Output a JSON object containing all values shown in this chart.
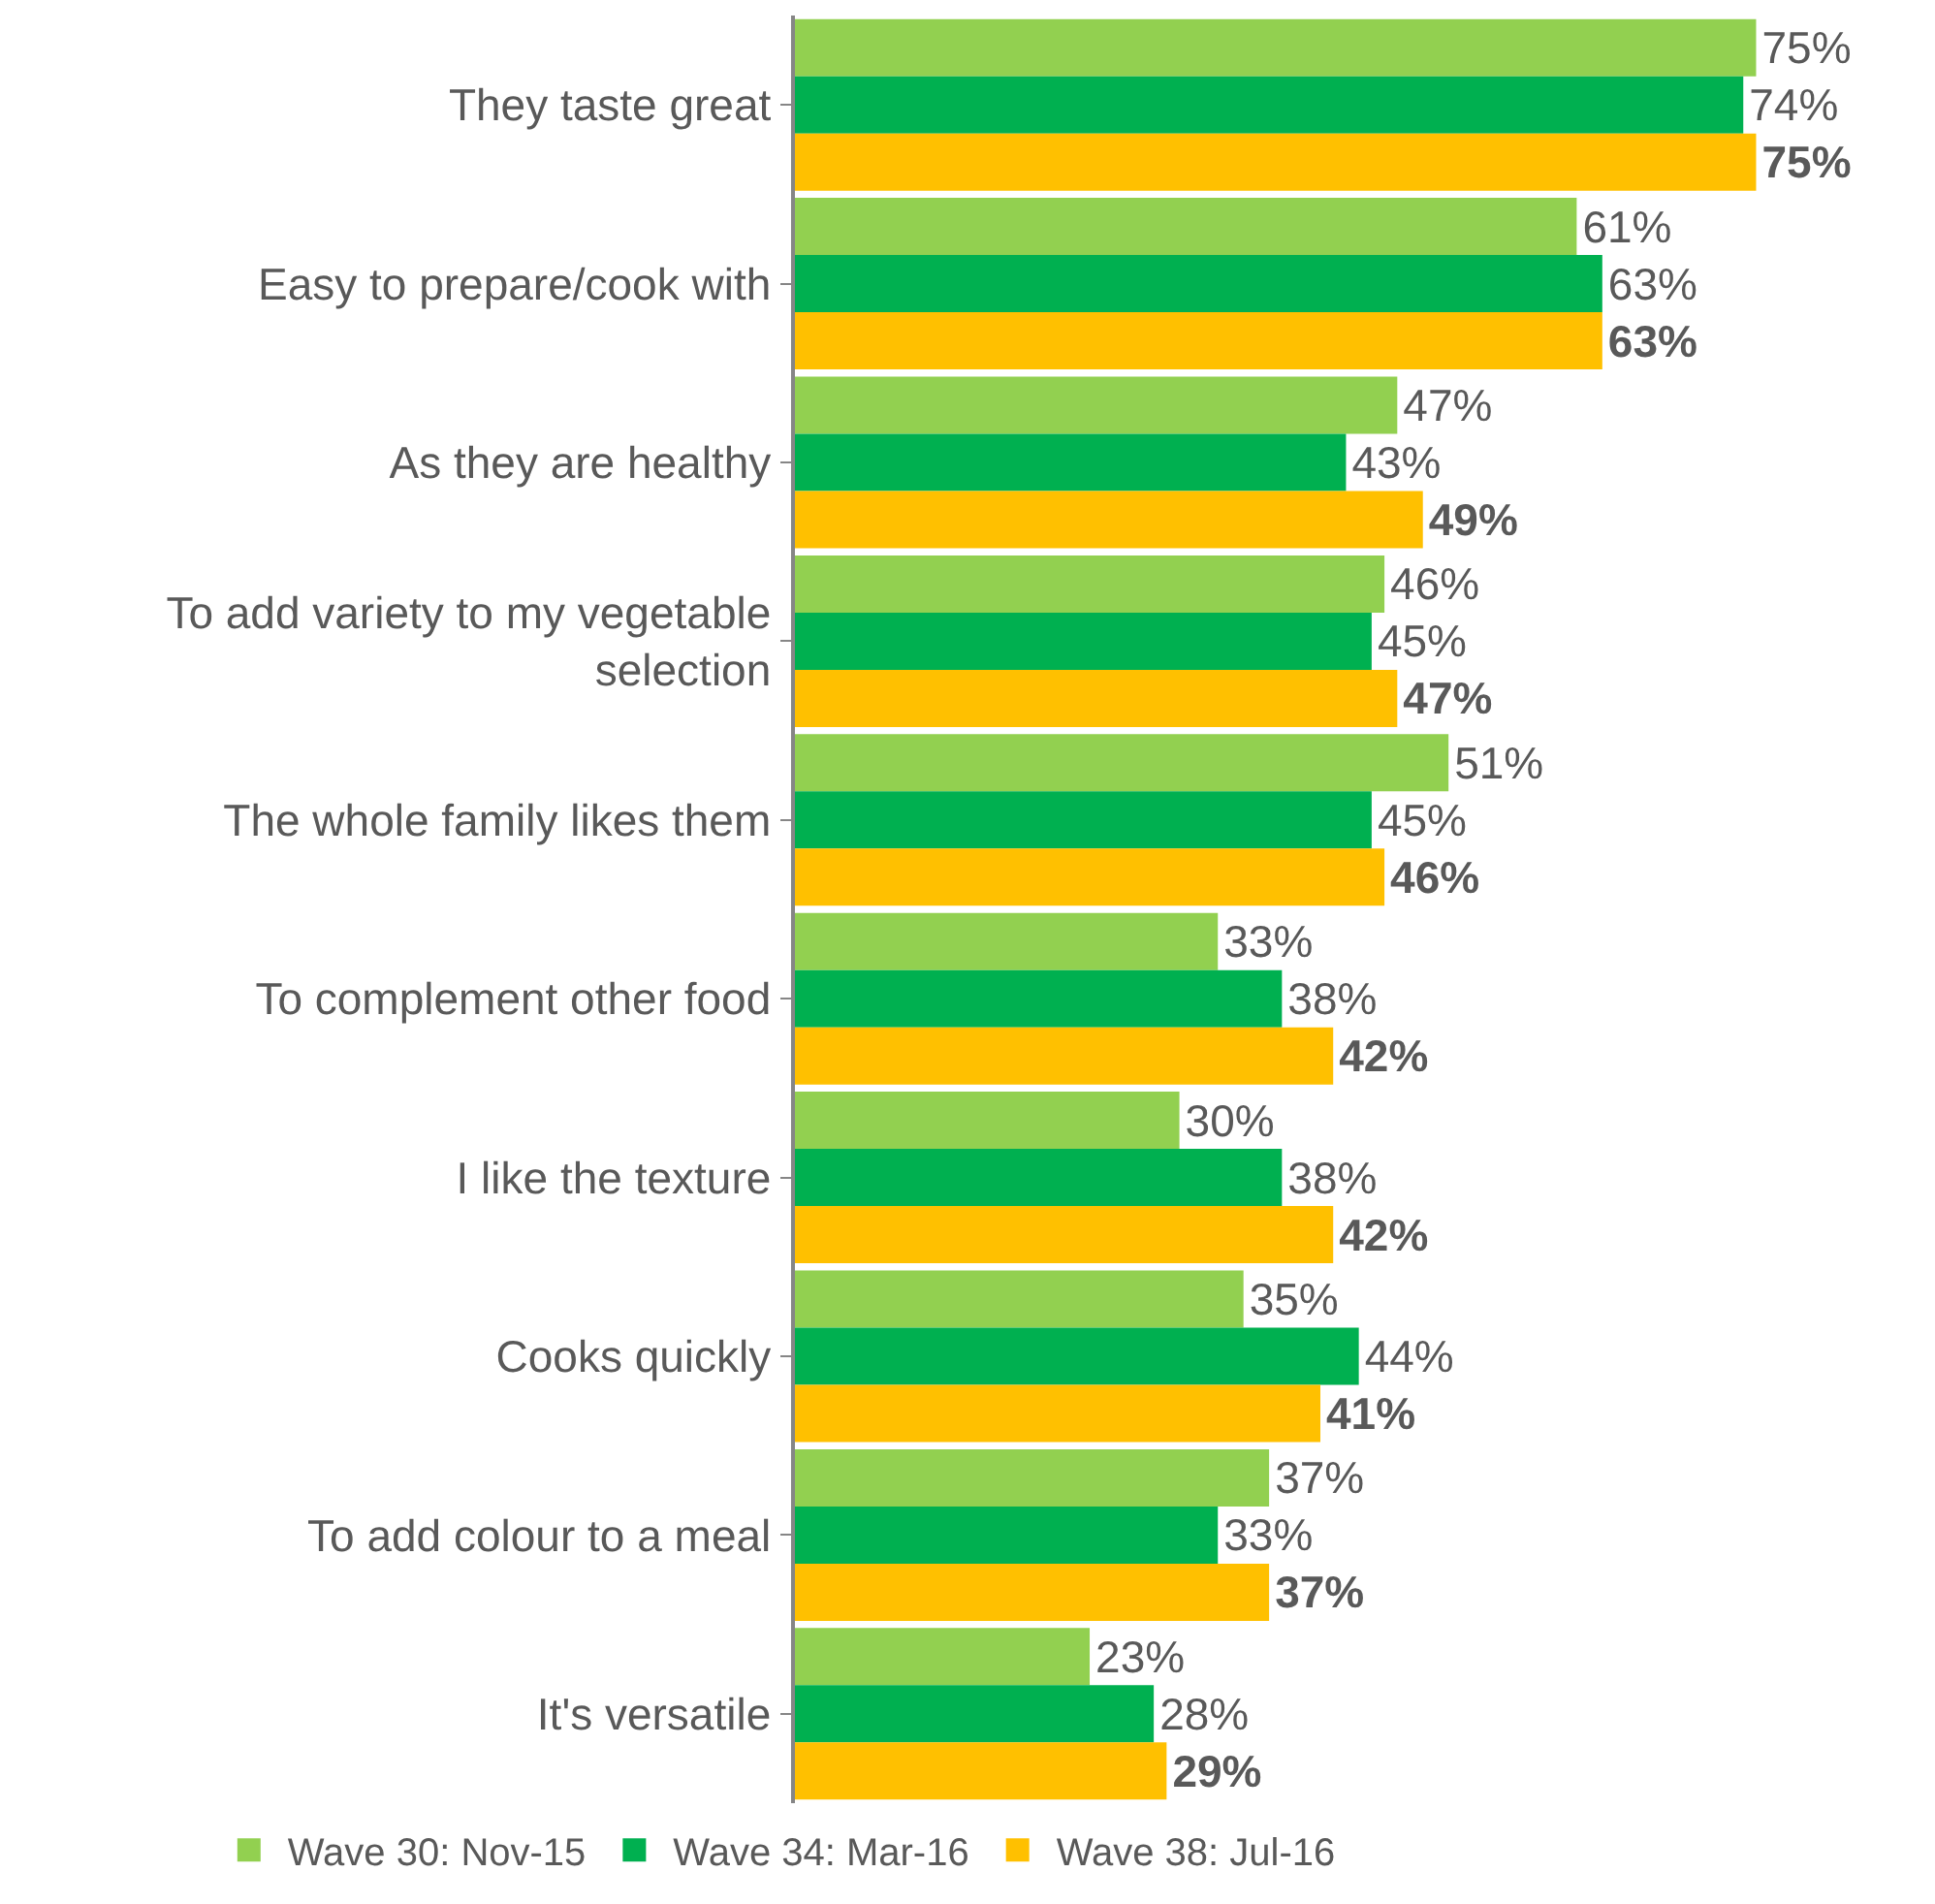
{
  "chart_data": {
    "type": "bar",
    "orientation": "horizontal",
    "tick_labels": "y",
    "legend": "bottom",
    "categories": [
      "They taste great",
      "Easy to prepare/cook with",
      "As they are healthy",
      "To add variety to my vegetable selection",
      "The whole family likes them",
      "To complement other food",
      "I like the texture",
      "Cooks quickly",
      "To add colour to a meal",
      "It's versatile"
    ],
    "series": [
      {
        "name": "Wave 30: Nov-15",
        "color": "#92d050",
        "values": [
          75,
          61,
          47,
          46,
          51,
          33,
          30,
          35,
          37,
          23
        ],
        "value_labels": [
          "75%",
          "61%",
          "47%",
          "46%",
          "51%",
          "33%",
          "30%",
          "35%",
          "37%",
          "23%"
        ]
      },
      {
        "name": "Wave 34: Mar-16",
        "color": "#00b050",
        "values": [
          74,
          63,
          43,
          45,
          45,
          38,
          38,
          44,
          33,
          28
        ],
        "value_labels": [
          "74%",
          "63%",
          "43%",
          "45%",
          "45%",
          "38%",
          "38%",
          "44%",
          "33%",
          "28%"
        ]
      },
      {
        "name": "Wave 38: Jul-16",
        "color": "#ffc000",
        "values": [
          75,
          63,
          49,
          47,
          46,
          42,
          42,
          41,
          37,
          29
        ],
        "value_labels": [
          "75%",
          "63%",
          "49%",
          "47%",
          "46%",
          "42%",
          "42%",
          "41%",
          "37%",
          "29%"
        ]
      }
    ]
  }
}
